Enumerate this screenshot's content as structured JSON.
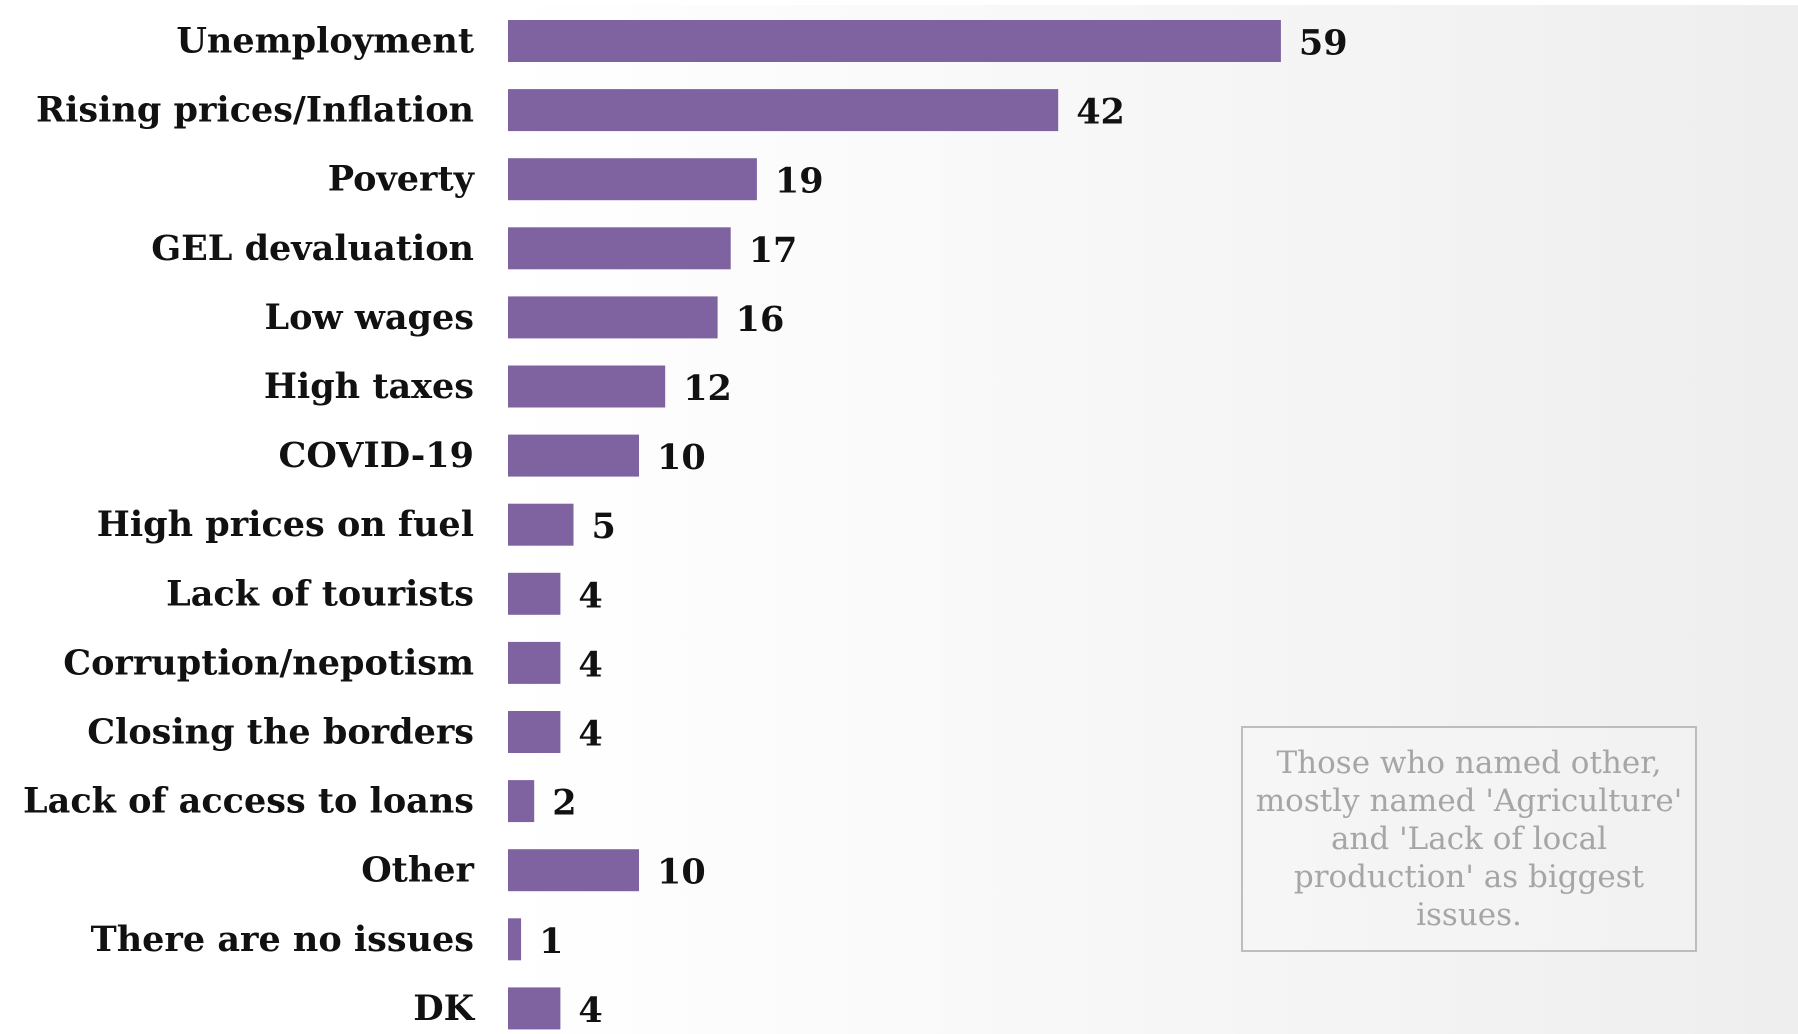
{
  "chart_data": {
    "type": "bar",
    "orientation": "horizontal",
    "categories": [
      "Unemployment",
      "Rising prices/Inflation",
      "Poverty",
      "GEL devaluation",
      "Low wages",
      "High taxes",
      "COVID-19",
      "High prices on fuel",
      "Lack of tourists",
      "Corruption/nepotism",
      "Closing the borders",
      "Lack of access to loans",
      "Other",
      "There are no issues",
      "DK"
    ],
    "values": [
      59,
      42,
      19,
      17,
      16,
      12,
      10,
      5,
      4,
      4,
      4,
      2,
      10,
      1,
      4
    ],
    "data_labels": [
      "59",
      "42",
      "19",
      "17",
      "16",
      "12",
      "10",
      "5",
      "4",
      "4",
      "4",
      "2",
      "10",
      "1",
      "4"
    ],
    "bar_color": "#7f63a1",
    "xlim": [
      0,
      98
    ],
    "grid": false,
    "legend": "none"
  },
  "annotation": {
    "text": "Those who named other, mostly named 'Agriculture' and 'Lack of local production' as biggest issues."
  }
}
